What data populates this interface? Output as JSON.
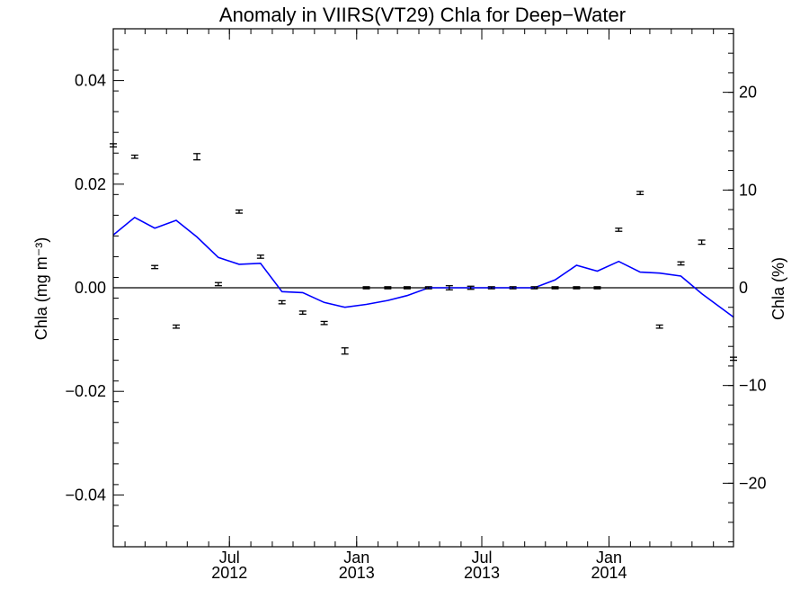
{
  "chart_data": {
    "type": "line",
    "title": "Anomaly in VIIRS(VT29) Chla for Deep−Water",
    "ylabel_left": "Chla (mg m⁻³)",
    "ylabel_right": "Chla (%)",
    "xlabel": "",
    "x_range": [
      "2012-01-15",
      "2014-06-30"
    ],
    "ylim_left": [
      -0.05,
      0.05
    ],
    "ylim_right": [
      -26.5,
      26.5
    ],
    "grid": false,
    "zero_line": true,
    "x_ticks": [
      {
        "date": "2012-07-01",
        "label_top": "Jul",
        "label_bottom": "2012"
      },
      {
        "date": "2013-01-01",
        "label_top": "Jan",
        "label_bottom": "2013"
      },
      {
        "date": "2013-07-01",
        "label_top": "Jul",
        "label_bottom": "2013"
      },
      {
        "date": "2014-01-01",
        "label_top": "Jan",
        "label_bottom": "2014"
      }
    ],
    "y_ticks_left": [
      {
        "value": 0.04,
        "label": "0.04"
      },
      {
        "value": 0.02,
        "label": "0.02"
      },
      {
        "value": 0.0,
        "label": "0.00"
      },
      {
        "value": -0.02,
        "label": "−0.02"
      },
      {
        "value": -0.04,
        "label": "−0.04"
      }
    ],
    "y_ticks_right": [
      {
        "value": 20,
        "label": "20"
      },
      {
        "value": 10,
        "label": "10"
      },
      {
        "value": 0,
        "label": "0"
      },
      {
        "value": -10,
        "label": "−10"
      },
      {
        "value": -20,
        "label": "−20"
      }
    ],
    "series": [
      {
        "kind": "line",
        "axis": "right",
        "color": "#0000ff",
        "x": [
          "2012-01-15",
          "2012-02-15",
          "2012-03-15",
          "2012-04-15",
          "2012-05-15",
          "2012-06-15",
          "2012-07-15",
          "2012-08-15",
          "2012-09-15",
          "2012-10-15",
          "2012-11-15",
          "2012-12-15",
          "2013-01-15",
          "2013-02-15",
          "2013-03-15",
          "2013-04-15",
          "2013-05-15",
          "2013-06-15",
          "2013-07-15",
          "2013-08-15",
          "2013-09-15",
          "2013-10-15",
          "2013-11-15",
          "2013-12-15",
          "2014-01-15",
          "2014-02-15",
          "2014-03-15",
          "2014-04-15",
          "2014-05-15",
          "2014-06-30"
        ],
        "y": [
          5.4,
          7.2,
          6.1,
          6.9,
          5.2,
          3.1,
          2.4,
          2.5,
          -0.4,
          -0.5,
          -1.5,
          -2.0,
          -1.7,
          -1.3,
          -0.8,
          0.0,
          0.0,
          0.0,
          0.0,
          0.0,
          0.0,
          0.8,
          2.3,
          1.7,
          2.7,
          1.6,
          1.5,
          1.2,
          -0.6,
          -3.0
        ]
      },
      {
        "kind": "errorbar",
        "axis": "left",
        "color": "#000000",
        "x": [
          "2012-01-15",
          "2012-02-15",
          "2012-03-15",
          "2012-04-15",
          "2012-05-15",
          "2012-06-15",
          "2012-07-15",
          "2012-08-15",
          "2012-09-15",
          "2012-10-15",
          "2012-11-15",
          "2012-12-15",
          "2013-01-15",
          "2013-02-15",
          "2013-03-15",
          "2013-04-15",
          "2013-05-15",
          "2013-06-15",
          "2013-07-15",
          "2013-08-15",
          "2013-09-15",
          "2013-10-15",
          "2013-11-15",
          "2013-12-15",
          "2014-01-15",
          "2014-02-15",
          "2014-03-15",
          "2014-04-15",
          "2014-05-15",
          "2014-06-30"
        ],
        "y": [
          0.0275,
          0.0253,
          0.004,
          -0.0075,
          0.0253,
          0.0007,
          0.0147,
          0.006,
          -0.0028,
          -0.0048,
          -0.0068,
          -0.0122,
          0.0,
          0.0,
          0.0,
          0.0,
          0.0,
          0.0,
          0.0,
          0.0,
          0.0,
          0.0,
          0.0,
          0.0,
          0.0112,
          0.0183,
          -0.0075,
          0.0047,
          0.0088,
          -0.0137
        ],
        "err": [
          0.0003,
          0.0003,
          0.0003,
          0.0003,
          0.0006,
          0.0003,
          0.0003,
          0.0003,
          0.0003,
          0.0003,
          0.0003,
          0.0006,
          0.0002,
          0.0002,
          0.0002,
          0.0002,
          0.0004,
          0.0003,
          0.0002,
          0.0002,
          0.0002,
          0.0002,
          0.0002,
          0.0002,
          0.0003,
          0.0003,
          0.0003,
          0.0003,
          0.0004,
          0.0003
        ]
      }
    ]
  }
}
